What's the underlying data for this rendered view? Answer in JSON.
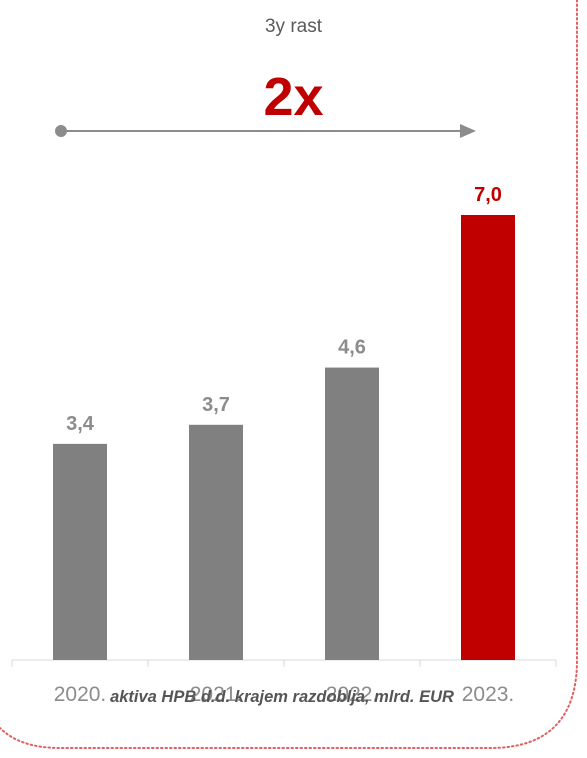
{
  "header": {
    "subtitle": "3y rast",
    "growth": "2x"
  },
  "caption": "aktiva HPB d.d. krajem razdoblja, mlrd. EUR",
  "colors": {
    "bar_default": "#808080",
    "bar_highlight": "#c00000",
    "label_default": "#8c8c8c",
    "axis_label": "#8c8c8c",
    "frame": "#e06060"
  },
  "chart_data": {
    "type": "bar",
    "categories": [
      "2020.",
      "2021.",
      "2022.",
      "2023."
    ],
    "values": [
      3.4,
      3.7,
      4.6,
      7.0
    ],
    "value_labels": [
      "3,4",
      "3,7",
      "4,6",
      "7,0"
    ],
    "highlight_index": 3,
    "ylim": [
      0,
      7.0
    ],
    "grid": false,
    "legend": "none"
  }
}
